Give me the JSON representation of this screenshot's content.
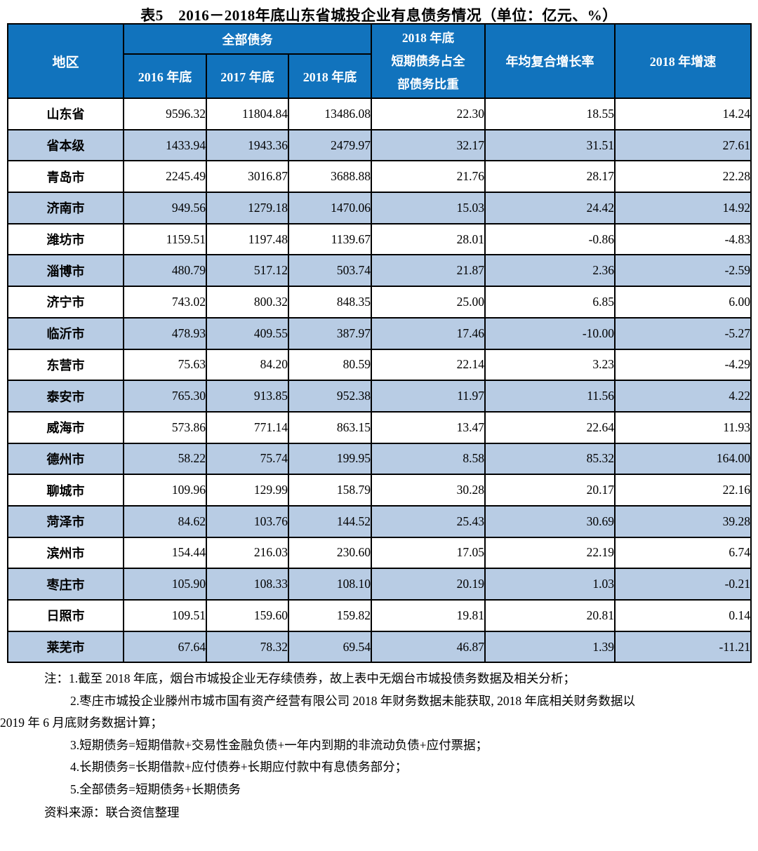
{
  "title": "表5　2016－2018年底山东省城投企业有息债务情况（单位：亿元、%）",
  "colors": {
    "header_bg": "#1173bd",
    "header_text": "#ffffff",
    "alt_row_bg": "#b8cce4",
    "row_bg": "#ffffff",
    "border": "#000000",
    "text": "#000000"
  },
  "table": {
    "headers": {
      "region": "地区",
      "total_debt_group": "全部债务",
      "sub_2016": "2016 年底",
      "sub_2017": "2017 年底",
      "sub_2018": "2018 年底",
      "short_term_share": "2018 年底\n短期债务占全\n部债务比重",
      "cagr": "年均复合增长率",
      "growth_2018": "2018 年增速"
    },
    "rows": [
      {
        "region": "山东省",
        "y2016": "9596.32",
        "y2017": "11804.84",
        "y2018": "13486.08",
        "short_term_share": "22.30",
        "cagr": "18.55",
        "growth_2018": "14.24"
      },
      {
        "region": "省本级",
        "y2016": "1433.94",
        "y2017": "1943.36",
        "y2018": "2479.97",
        "short_term_share": "32.17",
        "cagr": "31.51",
        "growth_2018": "27.61"
      },
      {
        "region": "青岛市",
        "y2016": "2245.49",
        "y2017": "3016.87",
        "y2018": "3688.88",
        "short_term_share": "21.76",
        "cagr": "28.17",
        "growth_2018": "22.28"
      },
      {
        "region": "济南市",
        "y2016": "949.56",
        "y2017": "1279.18",
        "y2018": "1470.06",
        "short_term_share": "15.03",
        "cagr": "24.42",
        "growth_2018": "14.92"
      },
      {
        "region": "潍坊市",
        "y2016": "1159.51",
        "y2017": "1197.48",
        "y2018": "1139.67",
        "short_term_share": "28.01",
        "cagr": "-0.86",
        "growth_2018": "-4.83"
      },
      {
        "region": "淄博市",
        "y2016": "480.79",
        "y2017": "517.12",
        "y2018": "503.74",
        "short_term_share": "21.87",
        "cagr": "2.36",
        "growth_2018": "-2.59"
      },
      {
        "region": "济宁市",
        "y2016": "743.02",
        "y2017": "800.32",
        "y2018": "848.35",
        "short_term_share": "25.00",
        "cagr": "6.85",
        "growth_2018": "6.00"
      },
      {
        "region": "临沂市",
        "y2016": "478.93",
        "y2017": "409.55",
        "y2018": "387.97",
        "short_term_share": "17.46",
        "cagr": "-10.00",
        "growth_2018": "-5.27"
      },
      {
        "region": "东营市",
        "y2016": "75.63",
        "y2017": "84.20",
        "y2018": "80.59",
        "short_term_share": "22.14",
        "cagr": "3.23",
        "growth_2018": "-4.29"
      },
      {
        "region": "泰安市",
        "y2016": "765.30",
        "y2017": "913.85",
        "y2018": "952.38",
        "short_term_share": "11.97",
        "cagr": "11.56",
        "growth_2018": "4.22"
      },
      {
        "region": "威海市",
        "y2016": "573.86",
        "y2017": "771.14",
        "y2018": "863.15",
        "short_term_share": "13.47",
        "cagr": "22.64",
        "growth_2018": "11.93"
      },
      {
        "region": "德州市",
        "y2016": "58.22",
        "y2017": "75.74",
        "y2018": "199.95",
        "short_term_share": "8.58",
        "cagr": "85.32",
        "growth_2018": "164.00"
      },
      {
        "region": "聊城市",
        "y2016": "109.96",
        "y2017": "129.99",
        "y2018": "158.79",
        "short_term_share": "30.28",
        "cagr": "20.17",
        "growth_2018": "22.16"
      },
      {
        "region": "菏泽市",
        "y2016": "84.62",
        "y2017": "103.76",
        "y2018": "144.52",
        "short_term_share": "25.43",
        "cagr": "30.69",
        "growth_2018": "39.28"
      },
      {
        "region": "滨州市",
        "y2016": "154.44",
        "y2017": "216.03",
        "y2018": "230.60",
        "short_term_share": "17.05",
        "cagr": "22.19",
        "growth_2018": "6.74"
      },
      {
        "region": "枣庄市",
        "y2016": "105.90",
        "y2017": "108.33",
        "y2018": "108.10",
        "short_term_share": "20.19",
        "cagr": "1.03",
        "growth_2018": "-0.21"
      },
      {
        "region": "日照市",
        "y2016": "109.51",
        "y2017": "159.60",
        "y2018": "159.82",
        "short_term_share": "19.81",
        "cagr": "20.81",
        "growth_2018": "0.14"
      },
      {
        "region": "莱芜市",
        "y2016": "67.64",
        "y2017": "78.32",
        "y2018": "69.54",
        "short_term_share": "46.87",
        "cagr": "1.39",
        "growth_2018": "-11.21"
      }
    ]
  },
  "notes": [
    "注：1.截至 2018 年底，烟台市城投企业无存续债券，故上表中无烟台市城投债务数据及相关分析；",
    "2.枣庄市城投企业滕州市城市国有资产经营有限公司 2018 年财务数据未能获取, 2018 年底相关财务数据以",
    "2019 年 6 月底财务数据计算；",
    "3.短期债务=短期借款+交易性金融负债+一年内到期的非流动负债+应付票据；",
    "4.长期债务=长期借款+应付债券+长期应付款中有息债务部分；",
    "5.全部债务=短期债务+长期债务"
  ],
  "source": "资料来源：联合资信整理"
}
